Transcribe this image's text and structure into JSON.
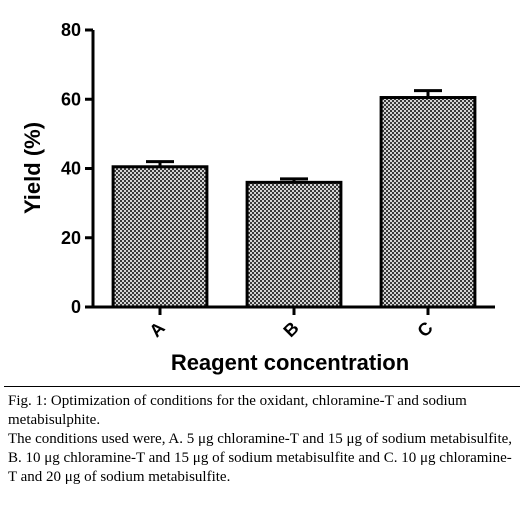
{
  "chart_data": {
    "type": "bar",
    "categories": [
      "A",
      "B",
      "C"
    ],
    "values": [
      40.5,
      36,
      60.5
    ],
    "errors": [
      1.5,
      1,
      2
    ],
    "xlabel": "Reagent concentration",
    "ylabel": "Yield (%)",
    "ylim": [
      0,
      80
    ],
    "yticks": [
      0,
      20,
      40,
      60,
      80
    ],
    "grid": false,
    "legend": "none",
    "bar_pattern": "crosshatch",
    "bar_color": "#8c8c8c"
  },
  "caption": {
    "line1": "Fig. 1: Optimization of conditions for the oxidant, chloramine-T and sodium metabisulphite.",
    "line2": "The conditions used were, A. 5 μg chloramine-T and 15 μg of sodium metabisulfite, B. 10 μg chloramine-T and 15 μg of sodium metabisulfite and C. 10 μg chloramine-T and 20 μg of sodium metabisulfite."
  }
}
